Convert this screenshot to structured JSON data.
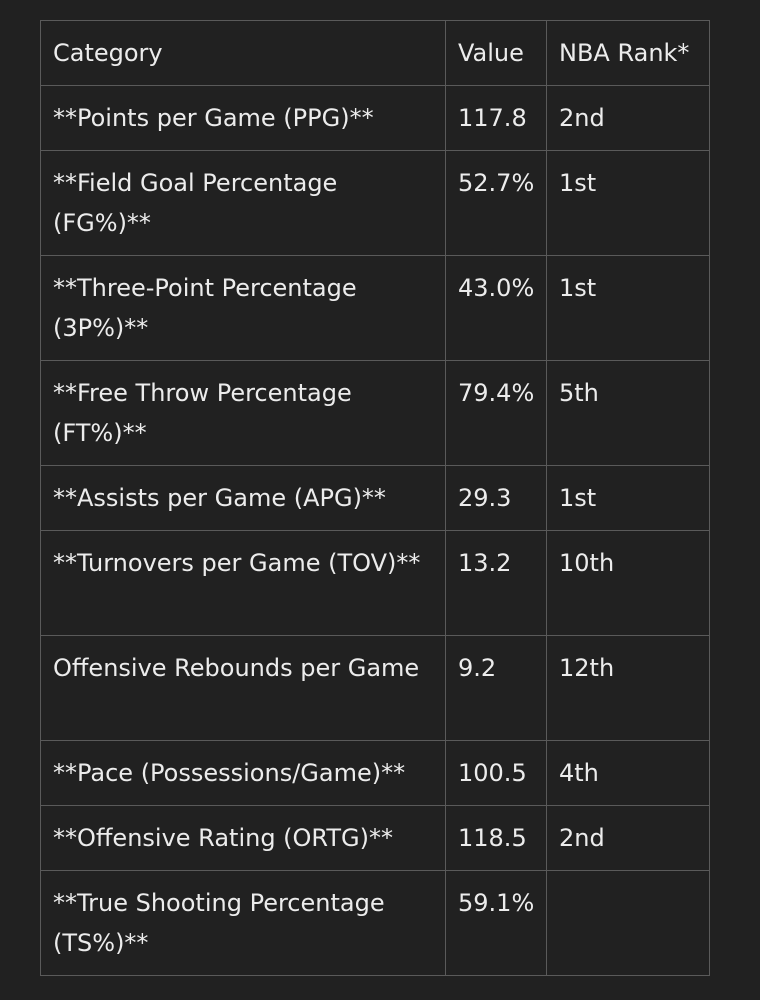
{
  "table": {
    "headers": [
      "Category",
      "Value",
      "NBA Rank*"
    ],
    "rows": [
      [
        "**Points per Game (PPG)**",
        "117.8",
        "2nd"
      ],
      [
        "**Field Goal Percentage (FG%)**",
        "52.7%",
        "1st"
      ],
      [
        "**Three-Point Percentage (3P%)**",
        "43.0%",
        "1st"
      ],
      [
        "**Free Throw Percentage (FT%)**",
        "79.4%",
        "5th"
      ],
      [
        "**Assists per Game (APG)**",
        "29.3",
        "1st"
      ],
      [
        "**Turnovers per Game (TOV)**",
        "13.2",
        "10th"
      ],
      [
        "Offensive Rebounds per Game",
        "9.2",
        "12th"
      ],
      [
        "**Pace (Possessions/Game)**",
        "100.5",
        "4th"
      ],
      [
        "**Offensive Rating (ORTG)**",
        "118.5",
        "2nd"
      ],
      [
        "**True Shooting Percentage (TS%)**",
        "59.1%",
        ""
      ]
    ]
  }
}
